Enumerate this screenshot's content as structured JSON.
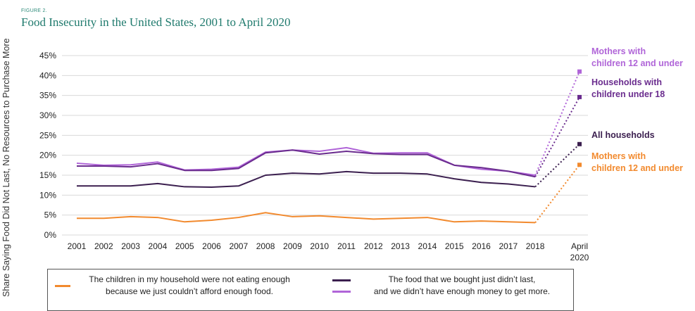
{
  "figure_label": "FIGURE 2.",
  "chart_data": {
    "type": "line",
    "title": "Food Insecurity in the United States, 2001 to April 2020",
    "ylabel": "Share Saying Food Did Not Last, No Resources to Purchase More",
    "xlabel": "",
    "categories": [
      "2001",
      "2002",
      "2003",
      "2004",
      "2005",
      "2006",
      "2007",
      "2008",
      "2009",
      "2010",
      "2011",
      "2012",
      "2013",
      "2014",
      "2015",
      "2016",
      "2017",
      "2018",
      "April 2020"
    ],
    "ylim": [
      0,
      45
    ],
    "y_ticks": [
      "0%",
      "5%",
      "10%",
      "15%",
      "20%",
      "25%",
      "30%",
      "35%",
      "40%",
      "45%"
    ],
    "grid": true,
    "series": [
      {
        "name": "Mothers with children 12 and under",
        "color": "#b065d8",
        "style": "solid-then-dotted",
        "values": [
          18.0,
          17.5,
          17.6,
          18.3,
          16.3,
          16.5,
          17.0,
          20.8,
          21.3,
          21.0,
          21.9,
          20.5,
          20.6,
          20.6,
          17.5,
          16.5,
          16.0,
          15.0,
          41.0
        ]
      },
      {
        "name": "Households with children under 18",
        "color": "#6a2c8e",
        "style": "solid-then-dotted",
        "values": [
          17.3,
          17.3,
          17.1,
          17.9,
          16.2,
          16.2,
          16.7,
          20.6,
          21.3,
          20.3,
          21.0,
          20.4,
          20.2,
          20.2,
          17.5,
          16.9,
          16.0,
          14.6,
          34.6
        ]
      },
      {
        "name": "All households",
        "color": "#3b1f4f",
        "style": "solid-then-dotted",
        "values": [
          12.3,
          12.3,
          12.3,
          12.9,
          12.1,
          12.0,
          12.3,
          15.0,
          15.5,
          15.3,
          15.9,
          15.5,
          15.5,
          15.3,
          14.1,
          13.2,
          12.8,
          12.1,
          22.8
        ]
      },
      {
        "name": "Mothers with children 12 and under",
        "color": "#f28a2e",
        "style": "solid-then-dotted",
        "values": [
          4.2,
          4.2,
          4.6,
          4.4,
          3.3,
          3.7,
          4.4,
          5.6,
          4.6,
          4.8,
          4.4,
          4.0,
          4.2,
          4.4,
          3.3,
          3.5,
          3.3,
          3.1,
          17.6
        ]
      }
    ],
    "end_labels": [
      {
        "lines": [
          "Mothers with",
          "children 12 and under"
        ],
        "color": "#b065d8"
      },
      {
        "lines": [
          "Households with",
          "children under 18"
        ],
        "color": "#6a2c8e"
      },
      {
        "lines": [
          "All households"
        ],
        "color": "#3b1f4f"
      },
      {
        "lines": [
          "Mothers with",
          "children 12 and under"
        ],
        "color": "#f28a2e"
      }
    ],
    "legend": {
      "placement": "bottom",
      "items": [
        {
          "lines": [
            "The children in my household were not eating enough",
            "because we just couldn’t afford enough food."
          ],
          "colors": [
            "#f28a2e"
          ]
        },
        {
          "lines": [
            "The food that we bought just didn’t last,",
            "and we didn’t have enough money to get more."
          ],
          "colors": [
            "#3b1f4f",
            "#b065d8"
          ]
        }
      ]
    }
  }
}
